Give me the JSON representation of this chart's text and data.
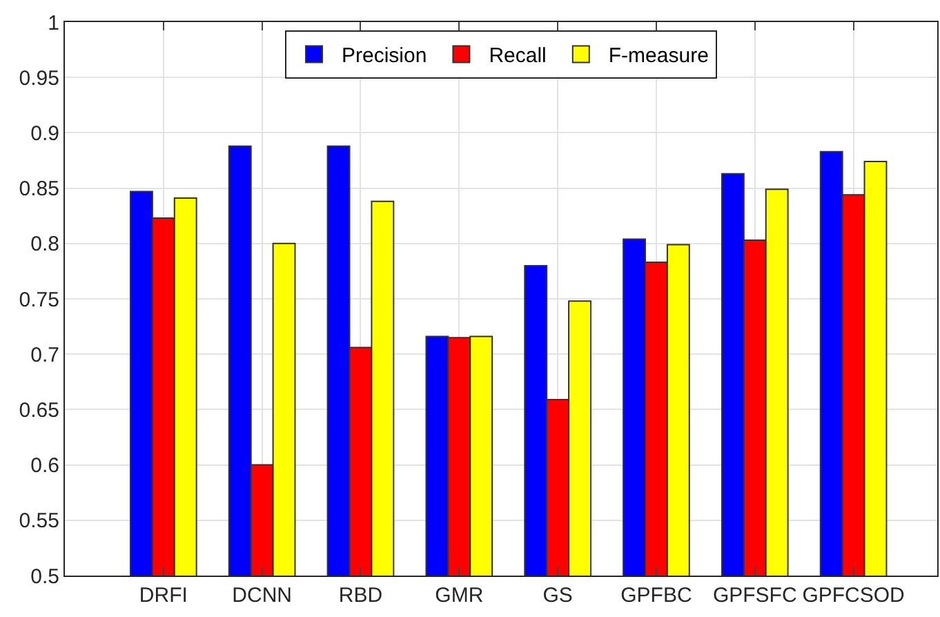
{
  "chart_data": {
    "type": "bar",
    "categories": [
      "DRFI",
      "DCNN",
      "RBD",
      "GMR",
      "GS",
      "GPFBC",
      "GPFSFC",
      "GPFCSOD"
    ],
    "series": [
      {
        "name": "Precision",
        "color": "#0000ff",
        "values": [
          0.847,
          0.888,
          0.888,
          0.716,
          0.78,
          0.804,
          0.863,
          0.883
        ]
      },
      {
        "name": "Recall",
        "color": "#ff0000",
        "values": [
          0.823,
          0.6,
          0.706,
          0.715,
          0.659,
          0.783,
          0.803,
          0.844
        ]
      },
      {
        "name": "F-measure",
        "color": "#ffff00",
        "values": [
          0.841,
          0.8,
          0.838,
          0.716,
          0.748,
          0.799,
          0.849,
          0.874
        ]
      }
    ],
    "ylim": [
      0.5,
      1
    ],
    "yticks": [
      0.5,
      0.55,
      0.6,
      0.65,
      0.7,
      0.75,
      0.8,
      0.85,
      0.9,
      0.95,
      1
    ],
    "grid": true,
    "legend": "top"
  }
}
